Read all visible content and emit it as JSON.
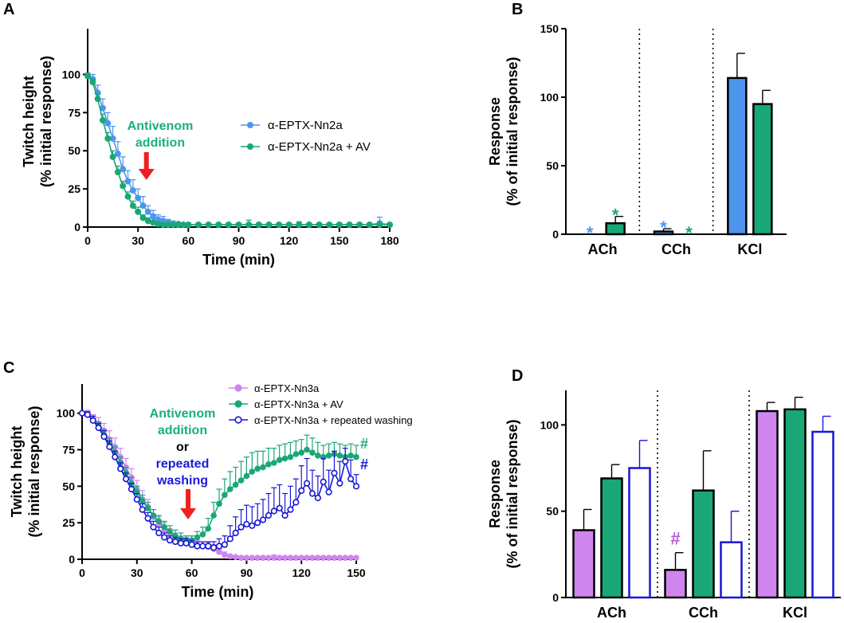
{
  "colors": {
    "blue": "#4e95ee",
    "green": "#1aa776",
    "purple": "#cf85ee",
    "navy": "#1717d6",
    "red": "#ee2020",
    "greenText": "#19b07a",
    "navyText": "#1a1ad8",
    "purpleText": "#b45cd6"
  },
  "chart_data": [
    {
      "panel": "A",
      "type": "line",
      "xlabel": "Time (min)",
      "ylabel_line1": "Twitch height",
      "ylabel_line2": "(% initial response)",
      "xlim": [
        0,
        180
      ],
      "ylim": [
        0,
        130
      ],
      "xticks": [
        0,
        30,
        60,
        90,
        120,
        150,
        180
      ],
      "yticks": [
        0,
        25,
        50,
        75,
        100
      ],
      "annotation_line1": "Antivenom",
      "annotation_line2": "addition",
      "arrow_x": 35,
      "series": [
        {
          "name": "α-EPTX-Nn2a",
          "color": "blue",
          "x": [
            0,
            3,
            6,
            9,
            12,
            15,
            18,
            21,
            24,
            27,
            30,
            33,
            36,
            39,
            42,
            45,
            48,
            51,
            54,
            57,
            60,
            66,
            72,
            78,
            84,
            90,
            96,
            102,
            108,
            114,
            120,
            126,
            132,
            138,
            144,
            150,
            156,
            162,
            168,
            174,
            180
          ],
          "y": [
            99,
            97,
            88,
            78,
            68,
            58,
            48,
            38,
            30,
            24,
            19,
            14,
            10,
            7,
            5,
            4,
            3,
            2,
            2,
            1.5,
            1.5,
            1.5,
            1.5,
            1.5,
            1.5,
            1.5,
            1.5,
            1.5,
            1.5,
            1.5,
            1.5,
            1.5,
            1.5,
            1.5,
            1.5,
            1.5,
            1.5,
            1.5,
            1.5,
            2.5,
            1.5
          ],
          "err": [
            2,
            3,
            5,
            6,
            7,
            8,
            8,
            8,
            7,
            7,
            6,
            6,
            4,
            4,
            3,
            3,
            2,
            2,
            1,
            1,
            1,
            1,
            1,
            1,
            1,
            1,
            1,
            1,
            1,
            1,
            1,
            1,
            1,
            1,
            1,
            1,
            1,
            1,
            1,
            4,
            1
          ]
        },
        {
          "name": "α-EPTX-Nn2a  + AV",
          "color": "green",
          "x": [
            0,
            3,
            6,
            9,
            12,
            15,
            18,
            21,
            24,
            27,
            30,
            33,
            36,
            39,
            42,
            45,
            48,
            51,
            54,
            57,
            60,
            66,
            72,
            78,
            84,
            90,
            96,
            102,
            108,
            114,
            120,
            126,
            132,
            138,
            144,
            150,
            156,
            162,
            168,
            174,
            180
          ],
          "y": [
            99,
            95,
            84,
            70,
            58,
            46,
            36,
            27,
            20,
            14,
            10,
            6,
            4,
            3,
            2,
            1.5,
            1.5,
            1.5,
            1.5,
            1.5,
            1.5,
            1.5,
            1.5,
            1.5,
            1.5,
            1.5,
            1.5,
            1.5,
            1.5,
            1.5,
            1.5,
            1.5,
            1.5,
            1.5,
            1.5,
            1.5,
            1.5,
            1.5,
            1.5,
            1.5,
            1.5
          ],
          "err": [
            1,
            2,
            3,
            4,
            4,
            4,
            4,
            3,
            3,
            3,
            3,
            2,
            2,
            1,
            1,
            1,
            1,
            1,
            1,
            1,
            1,
            1,
            1,
            1,
            1,
            1,
            3,
            1,
            1,
            1,
            1,
            2,
            1,
            1,
            1,
            1,
            1,
            1,
            1,
            1,
            1
          ]
        }
      ]
    },
    {
      "panel": "B",
      "type": "bar",
      "ylabel_line1": "Response",
      "ylabel_line2": "(% of initial response)",
      "categories": [
        "ACh",
        "CCh",
        "KCl"
      ],
      "ylim": [
        0,
        150
      ],
      "yticks": [
        0,
        50,
        100,
        150
      ],
      "series": [
        {
          "name": "α-EPTX-Nn2a",
          "color": "blue",
          "values": [
            0,
            2,
            114
          ],
          "err": [
            0,
            2,
            18
          ],
          "marks": [
            "*",
            "*",
            ""
          ]
        },
        {
          "name": "α-EPTX-Nn2a + AV",
          "color": "green",
          "values": [
            8,
            0,
            95
          ],
          "err": [
            5,
            0,
            10
          ],
          "marks": [
            "*",
            "*",
            ""
          ]
        }
      ]
    },
    {
      "panel": "C",
      "type": "line",
      "xlabel": "Time (min)",
      "ylabel_line1": "Twitch height",
      "ylabel_line2": "(% initial response)",
      "xlim": [
        0,
        150
      ],
      "ylim": [
        0,
        120
      ],
      "xticks": [
        0,
        30,
        60,
        90,
        120,
        150
      ],
      "yticks": [
        0,
        25,
        50,
        75,
        100
      ],
      "annotation_line1": "Antivenom",
      "annotation_line2": "addition",
      "annotation_or": "or",
      "annotation_line3": "repeated",
      "annotation_line4": "washing",
      "arrow_x": 58,
      "end_marks": [
        "#",
        "#"
      ],
      "series": [
        {
          "name": "α-EPTX-Nn3a",
          "color": "purple",
          "fill": true,
          "x": [
            0,
            3,
            6,
            9,
            12,
            15,
            18,
            21,
            24,
            27,
            30,
            33,
            36,
            39,
            42,
            45,
            48,
            51,
            54,
            57,
            60,
            63,
            66,
            69,
            72,
            75,
            78,
            81,
            84,
            87,
            90,
            93,
            96,
            99,
            102,
            105,
            108,
            111,
            114,
            117,
            120,
            123,
            126,
            129,
            132,
            135,
            138,
            141,
            144,
            147,
            150
          ],
          "y": [
            100,
            100,
            96,
            93,
            88,
            82,
            77,
            70,
            63,
            56,
            48,
            41,
            36,
            29,
            24,
            20,
            17,
            15,
            13,
            12,
            11,
            10,
            9,
            8.5,
            7,
            5,
            3,
            2,
            1.5,
            1,
            1,
            1,
            1,
            1,
            1,
            1,
            1,
            1,
            1,
            1,
            1,
            1,
            1,
            1,
            1,
            1,
            1,
            1,
            1,
            1,
            1
          ],
          "err": [
            1,
            2,
            3,
            4,
            5,
            6,
            6,
            6,
            6,
            6,
            6,
            6,
            5,
            5,
            5,
            5,
            4,
            3,
            3,
            3,
            3,
            3,
            3,
            3,
            3,
            2,
            2,
            1,
            1,
            1,
            1,
            1,
            1,
            1,
            1,
            2,
            1,
            1,
            1,
            1,
            1,
            1,
            1,
            1,
            1,
            1,
            1,
            1,
            1,
            1,
            1
          ]
        },
        {
          "name": "α-EPTX-Nn3a  + AV",
          "color": "green",
          "fill": true,
          "x": [
            0,
            3,
            6,
            9,
            12,
            15,
            18,
            21,
            24,
            27,
            30,
            33,
            36,
            39,
            42,
            45,
            48,
            51,
            54,
            57,
            60,
            63,
            66,
            69,
            72,
            75,
            78,
            81,
            84,
            87,
            90,
            93,
            96,
            99,
            102,
            105,
            108,
            111,
            114,
            117,
            120,
            123,
            126,
            129,
            132,
            135,
            138,
            141,
            144,
            147,
            150
          ],
          "y": [
            100,
            99,
            95,
            91,
            85,
            79,
            73,
            66,
            59,
            52,
            46,
            40,
            35,
            30,
            26,
            22,
            19,
            16,
            14,
            13,
            13,
            15,
            17,
            21,
            30,
            38,
            44,
            48,
            51,
            54,
            57,
            60,
            62,
            63,
            65,
            66,
            68,
            69,
            70,
            72,
            73,
            75,
            73,
            71,
            70,
            71,
            72,
            71,
            70,
            71,
            70
          ],
          "err": [
            1,
            2,
            3,
            3,
            4,
            4,
            4,
            4,
            4,
            4,
            4,
            4,
            4,
            4,
            4,
            4,
            4,
            4,
            4,
            3,
            3,
            4,
            5,
            7,
            9,
            10,
            11,
            12,
            12,
            13,
            13,
            13,
            12,
            11,
            11,
            10,
            10,
            10,
            10,
            9,
            9,
            10,
            10,
            9,
            8,
            8,
            8,
            8,
            8,
            8,
            8
          ]
        },
        {
          "name": "α-EPTX-Nn3a  + repeated washing",
          "color": "navy",
          "fill": false,
          "x": [
            0,
            3,
            6,
            9,
            12,
            15,
            18,
            21,
            24,
            27,
            30,
            33,
            36,
            39,
            42,
            45,
            48,
            51,
            54,
            57,
            60,
            63,
            66,
            69,
            72,
            75,
            78,
            81,
            84,
            87,
            90,
            93,
            96,
            99,
            102,
            105,
            108,
            111,
            114,
            117,
            120,
            123,
            126,
            129,
            132,
            135,
            138,
            141,
            144,
            147,
            150
          ],
          "y": [
            100,
            99,
            95,
            90,
            84,
            77,
            70,
            62,
            55,
            48,
            41,
            34,
            28,
            22,
            18,
            15,
            13,
            12,
            11,
            11,
            10,
            9,
            9,
            9,
            8,
            9,
            10,
            14,
            18,
            22,
            24,
            23,
            25,
            27,
            30,
            33,
            35,
            30,
            34,
            39,
            47,
            52,
            45,
            42,
            53,
            46,
            59,
            52,
            67,
            55,
            50
          ],
          "err": [
            1,
            2,
            3,
            3,
            4,
            4,
            4,
            4,
            4,
            4,
            4,
            4,
            4,
            4,
            4,
            3,
            3,
            3,
            3,
            3,
            3,
            3,
            3,
            3,
            4,
            5,
            6,
            9,
            11,
            12,
            13,
            13,
            13,
            14,
            15,
            16,
            16,
            15,
            16,
            16,
            17,
            17,
            16,
            15,
            16,
            15,
            15,
            15,
            9,
            13,
            8
          ]
        }
      ]
    },
    {
      "panel": "D",
      "type": "bar",
      "ylabel_line1": "Response",
      "ylabel_line2": "(% of initial response)",
      "categories": [
        "ACh",
        "CCh",
        "KCl"
      ],
      "ylim": [
        0,
        120
      ],
      "yticks": [
        0,
        50,
        100
      ],
      "series": [
        {
          "name": "α-EPTX-Nn3a",
          "color": "purple",
          "fill": true,
          "values": [
            39,
            16,
            108
          ],
          "err": [
            12,
            10,
            5
          ],
          "marks": [
            "",
            "#",
            ""
          ]
        },
        {
          "name": "α-EPTX-Nn3a + AV",
          "color": "green",
          "fill": true,
          "values": [
            69,
            62,
            109
          ],
          "err": [
            8,
            23,
            7
          ],
          "marks": [
            "",
            "",
            ""
          ]
        },
        {
          "name": "α-EPTX-Nn3a + repeated washing",
          "color": "navy",
          "fill": false,
          "values": [
            75,
            32,
            96
          ],
          "err": [
            16,
            18,
            9
          ],
          "marks": [
            "",
            "",
            ""
          ]
        }
      ]
    }
  ]
}
